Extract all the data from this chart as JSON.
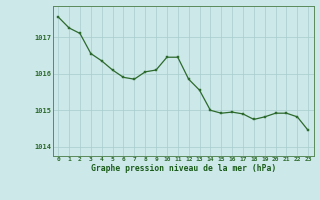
{
  "x": [
    0,
    1,
    2,
    3,
    4,
    5,
    6,
    7,
    8,
    9,
    10,
    11,
    12,
    13,
    14,
    15,
    16,
    17,
    18,
    19,
    20,
    21,
    22,
    23
  ],
  "y": [
    1017.55,
    1017.25,
    1017.1,
    1016.55,
    1016.35,
    1016.1,
    1015.9,
    1015.85,
    1016.05,
    1016.1,
    1016.45,
    1016.45,
    1015.85,
    1015.55,
    1015.0,
    1014.92,
    1014.95,
    1014.9,
    1014.75,
    1014.82,
    1014.92,
    1014.92,
    1014.82,
    1014.45
  ],
  "line_color": "#2d6a2d",
  "marker_color": "#2d6a2d",
  "background_color": "#cce8e8",
  "grid_color": "#a8cccc",
  "title": "Graphe pression niveau de la mer (hPa)",
  "title_color": "#1a5c1a",
  "ylim": [
    1013.75,
    1017.85
  ],
  "yticks": [
    1014,
    1015,
    1016,
    1017
  ],
  "xtick_labels": [
    "0",
    "1",
    "2",
    "3",
    "4",
    "5",
    "6",
    "7",
    "8",
    "9",
    "10",
    "11",
    "12",
    "13",
    "14",
    "15",
    "16",
    "17",
    "18",
    "19",
    "20",
    "21",
    "22",
    "23"
  ],
  "tick_color": "#2d6a2d",
  "border_color": "#5a8a5a",
  "spine_color": "#5a8a5a"
}
